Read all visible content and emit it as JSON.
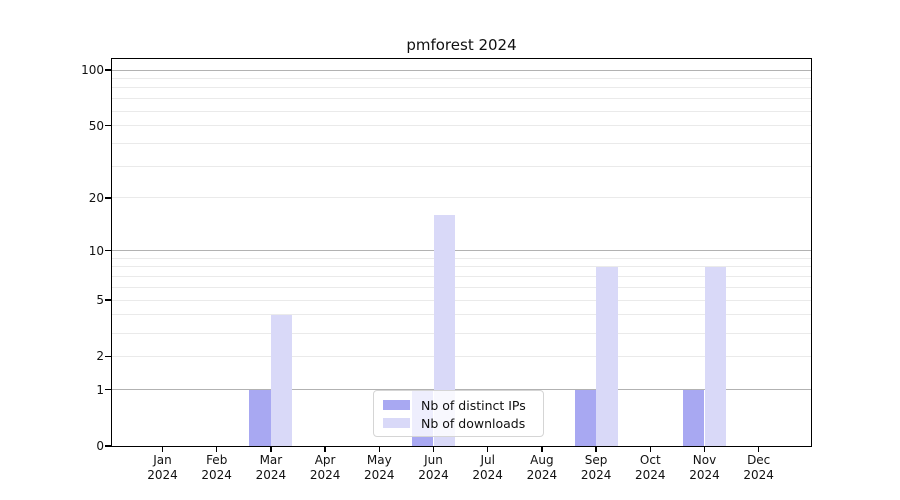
{
  "title": "pmforest 2024",
  "colors": {
    "series_distinct_ips": "#a8a8f2",
    "series_downloads": "#d9d9f8",
    "grid_major": "#b2b2b2",
    "grid_minor": "#eaeaea",
    "axis": "#000000",
    "legend_border": "#d5d5d5"
  },
  "y_axis": {
    "tick_values": [
      0,
      1,
      2,
      5,
      10,
      20,
      50,
      100
    ],
    "tick_labels": [
      "0",
      "1",
      "2",
      "5",
      "10",
      "20",
      "50",
      "100"
    ]
  },
  "x_axis": {
    "months": [
      {
        "month": "Jan",
        "year": "2024"
      },
      {
        "month": "Feb",
        "year": "2024"
      },
      {
        "month": "Mar",
        "year": "2024"
      },
      {
        "month": "Apr",
        "year": "2024"
      },
      {
        "month": "May",
        "year": "2024"
      },
      {
        "month": "Jun",
        "year": "2024"
      },
      {
        "month": "Jul",
        "year": "2024"
      },
      {
        "month": "Aug",
        "year": "2024"
      },
      {
        "month": "Sep",
        "year": "2024"
      },
      {
        "month": "Oct",
        "year": "2024"
      },
      {
        "month": "Nov",
        "year": "2024"
      },
      {
        "month": "Dec",
        "year": "2024"
      }
    ]
  },
  "legend": {
    "items": [
      {
        "label": "Nb of distinct IPs",
        "color": "#a8a8f2"
      },
      {
        "label": "Nb of downloads",
        "color": "#d9d9f8"
      }
    ]
  },
  "chart_data": {
    "type": "bar",
    "title": "pmforest 2024",
    "categories": [
      "Jan 2024",
      "Feb 2024",
      "Mar 2024",
      "Apr 2024",
      "May 2024",
      "Jun 2024",
      "Jul 2024",
      "Aug 2024",
      "Sep 2024",
      "Oct 2024",
      "Nov 2024",
      "Dec 2024"
    ],
    "series": [
      {
        "name": "Nb of distinct IPs",
        "color": "#a8a8f2",
        "values": [
          0,
          0,
          1,
          0,
          0,
          1,
          0,
          0,
          1,
          0,
          1,
          0
        ]
      },
      {
        "name": "Nb of downloads",
        "color": "#d9d9f8",
        "values": [
          0,
          0,
          4,
          0,
          0,
          16,
          0,
          0,
          8,
          0,
          8,
          0
        ]
      }
    ],
    "xlabel": "",
    "ylabel": "",
    "yscale": "log1p (symlog-like: y ∝ log(1+v))",
    "y_ticks": [
      0,
      1,
      2,
      5,
      10,
      20,
      50,
      100
    ],
    "ylim": [
      0,
      115
    ],
    "grid": "horizontal, major at 1/10/100, faint minors",
    "legend_position": "lower center"
  }
}
